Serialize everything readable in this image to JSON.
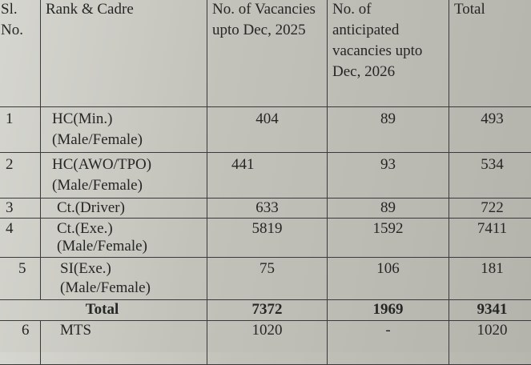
{
  "headers": {
    "sl": "Sl. No.",
    "rank": "Rank & Cadre",
    "vacancies": "No. of Vacancies upto Dec, 2025",
    "anticipated": "No. of anticipated vacancies upto Dec, 2026",
    "total": "Total"
  },
  "rows": [
    {
      "sl": "1",
      "rank": "HC(Min.)",
      "sub": "(Male/Female)",
      "vac": "404",
      "ant": "89",
      "total": "493"
    },
    {
      "sl": "2",
      "rank": "HC(AWO/TPO)",
      "sub": "(Male/Female)",
      "vac": "441",
      "ant": "93",
      "total": "534"
    },
    {
      "sl": "3",
      "rank": "Ct.(Driver)",
      "sub": "",
      "vac": "633",
      "ant": "89",
      "total": "722"
    },
    {
      "sl": "4",
      "rank": "Ct.(Exe.)",
      "sub": "(Male/Female)",
      "vac": "5819",
      "ant": "1592",
      "total": "7411"
    },
    {
      "sl": "5",
      "rank": "SI(Exe.)",
      "sub": "(Male/Female)",
      "vac": "75",
      "ant": "106",
      "total": "181"
    }
  ],
  "total_row": {
    "label": "Total",
    "vac": "7372",
    "ant": "1969",
    "total": "9341"
  },
  "mts_row": {
    "sl": "6",
    "rank": "MTS",
    "vac": "1020",
    "ant": "-",
    "total": "1020"
  }
}
